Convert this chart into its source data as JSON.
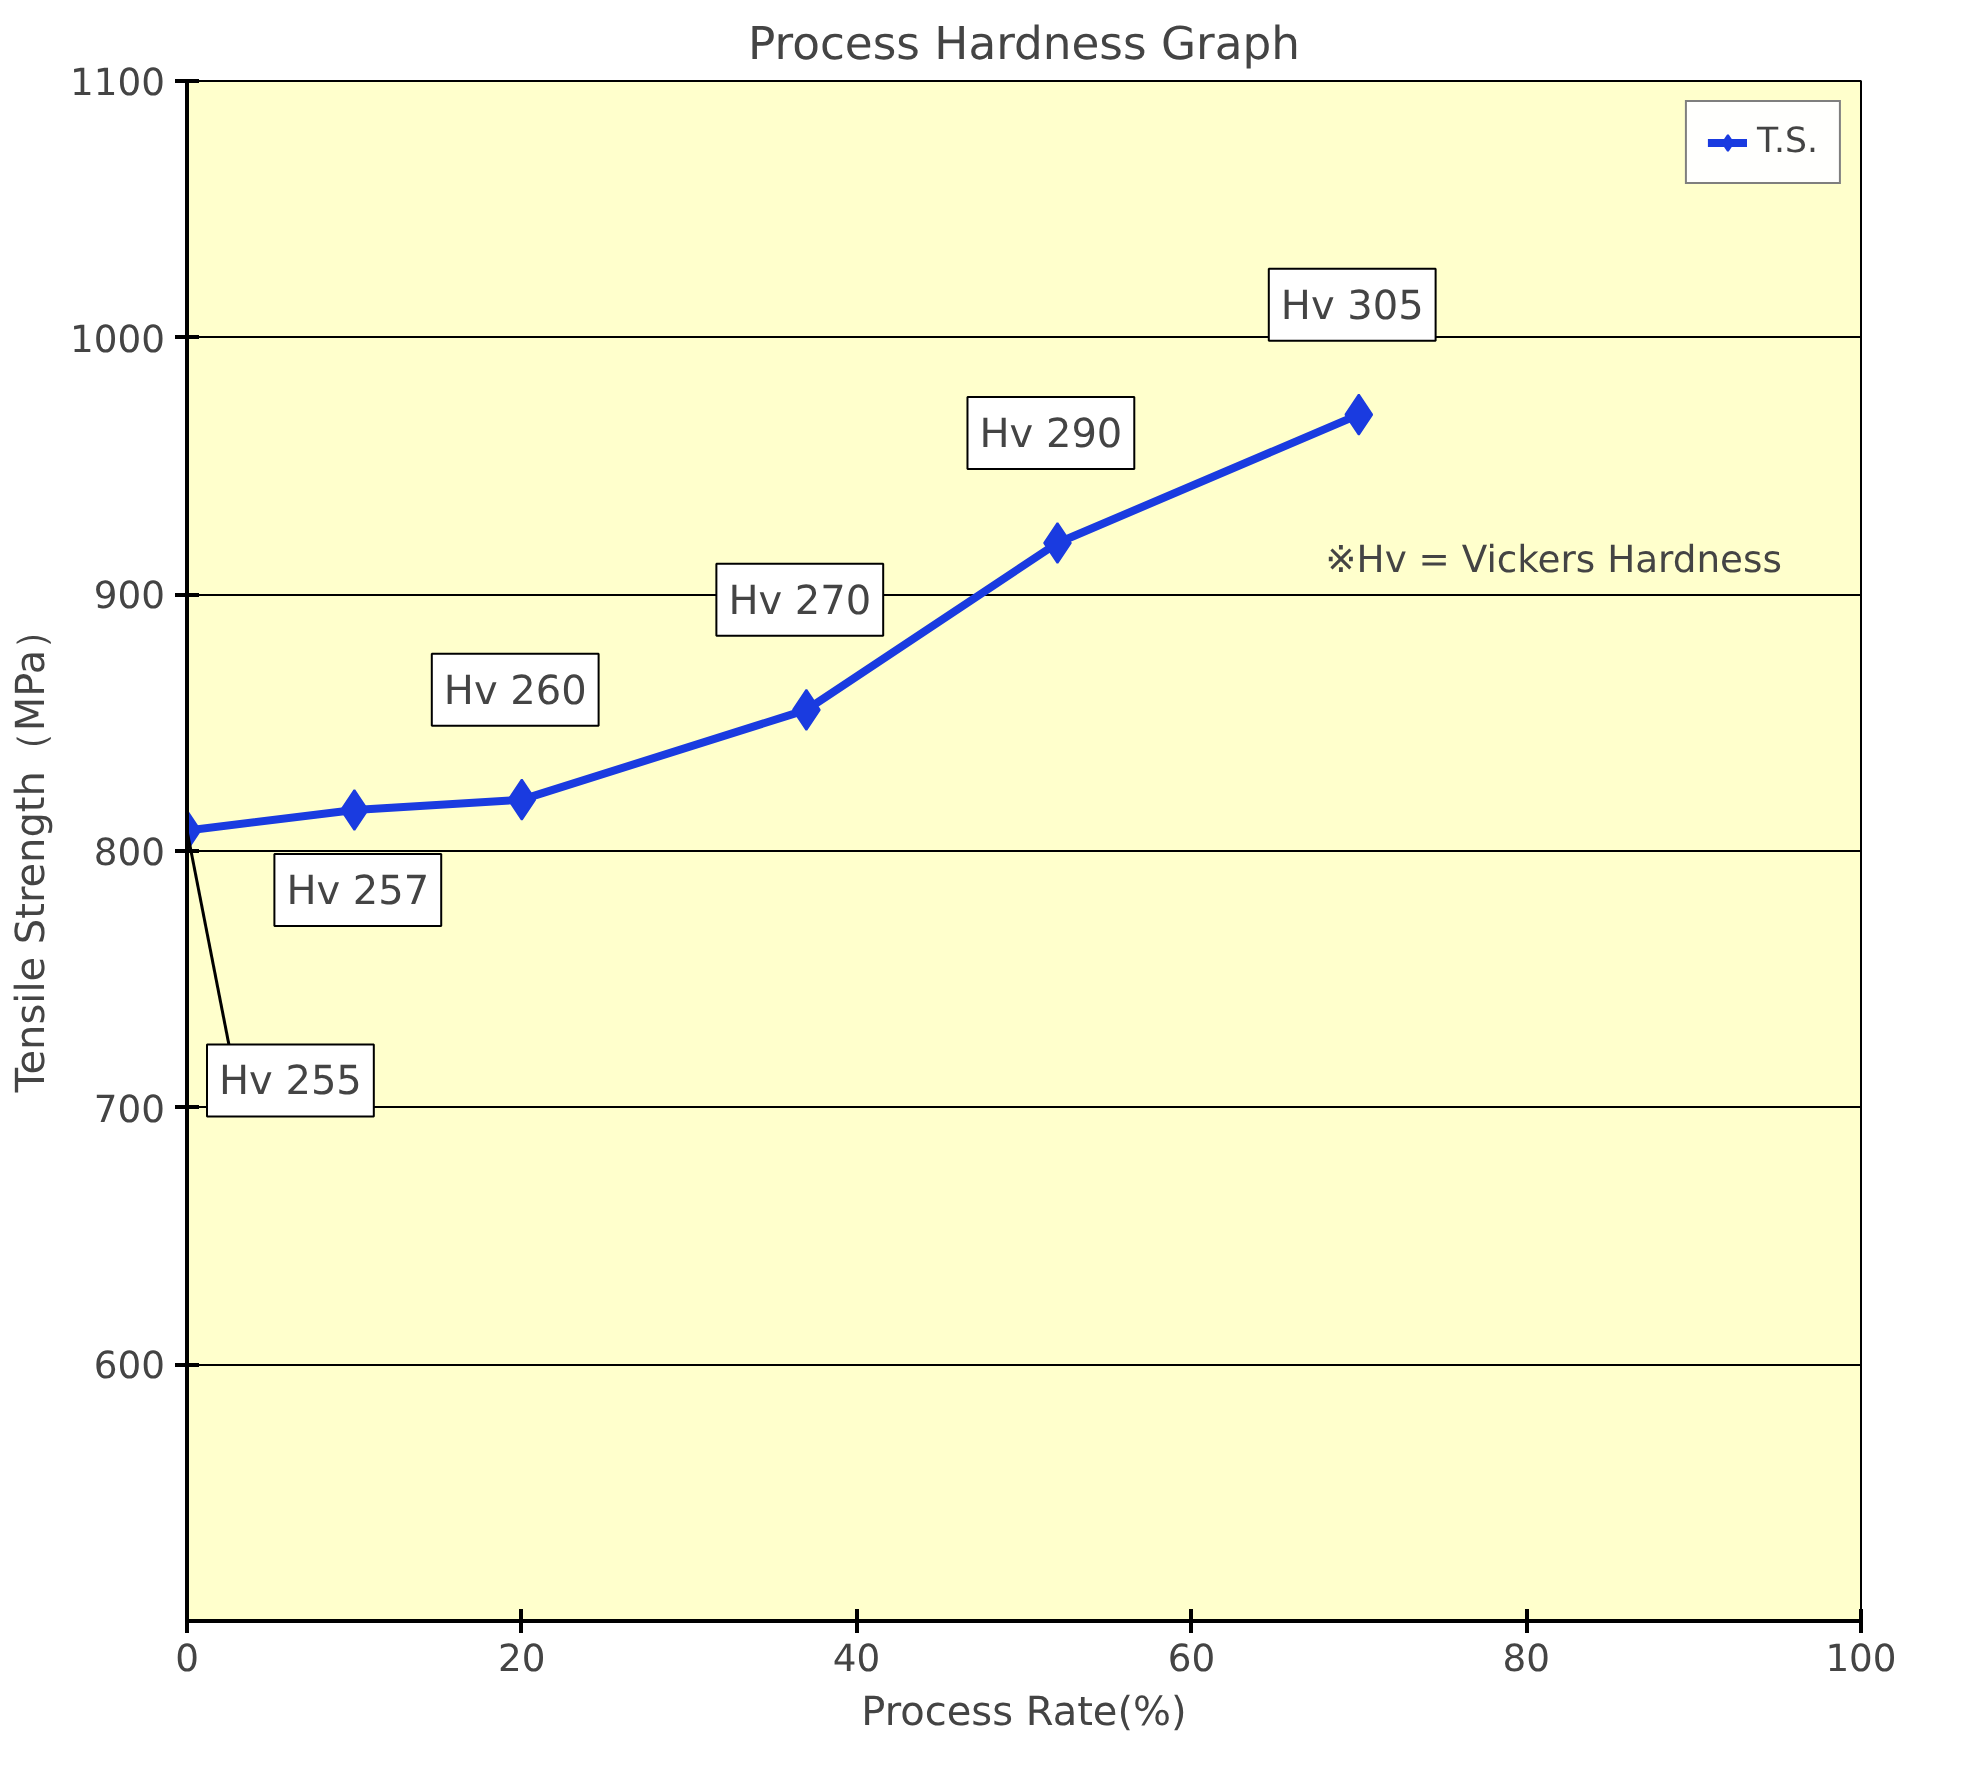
{
  "chart_data": {
    "type": "line",
    "title": "Process Hardness Graph",
    "xlabel": "Process Rate(%)",
    "ylabel": "Tensile Strength（MPa）",
    "x": [
      0,
      10,
      20,
      37,
      52,
      70
    ],
    "series": [
      {
        "name": "T.S.",
        "color": "#1a3be0",
        "values": [
          808,
          816,
          820,
          855,
          920,
          970
        ]
      }
    ],
    "xlim": [
      0,
      100
    ],
    "xticks": [
      0,
      20,
      40,
      60,
      80,
      100
    ],
    "ylim": [
      500,
      1100
    ],
    "yticks": [
      600,
      700,
      800,
      900,
      1000,
      1100
    ],
    "grid": "y",
    "legend": "top right",
    "marker": "diamond",
    "line_style": "solid",
    "annotations": [
      {
        "text": "Hv 255",
        "x": 0,
        "y": 808
      },
      {
        "text": "Hv 257",
        "x": 10,
        "y": 816
      },
      {
        "text": "Hv 260",
        "x": 20,
        "y": 820
      },
      {
        "text": "Hv 270",
        "x": 37,
        "y": 855
      },
      {
        "text": "Hv 290",
        "x": 52,
        "y": 920
      },
      {
        "text": "Hv 305",
        "x": 70,
        "y": 970
      },
      "※Hv = Vickers Hardness"
    ]
  }
}
